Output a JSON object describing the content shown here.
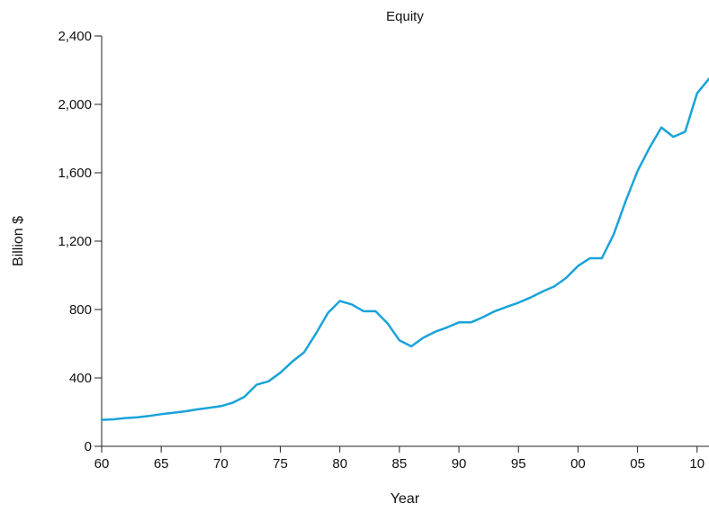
{
  "chart_data": {
    "type": "line",
    "title": "Equity",
    "xlabel": "Year",
    "ylabel": "Billion $",
    "xlim": [
      1960,
      2011
    ],
    "ylim": [
      0,
      2400
    ],
    "x_ticks": [
      {
        "value": 1960,
        "label": "60"
      },
      {
        "value": 1965,
        "label": "65"
      },
      {
        "value": 1970,
        "label": "70"
      },
      {
        "value": 1975,
        "label": "75"
      },
      {
        "value": 1980,
        "label": "80"
      },
      {
        "value": 1985,
        "label": "85"
      },
      {
        "value": 1990,
        "label": "90"
      },
      {
        "value": 1995,
        "label": "95"
      },
      {
        "value": 2000,
        "label": "00"
      },
      {
        "value": 2005,
        "label": "05"
      },
      {
        "value": 2010,
        "label": "10"
      }
    ],
    "y_ticks": [
      {
        "value": 0,
        "label": "0"
      },
      {
        "value": 400,
        "label": "400"
      },
      {
        "value": 800,
        "label": "800"
      },
      {
        "value": 1200,
        "label": "1,200"
      },
      {
        "value": 1600,
        "label": "1,600"
      },
      {
        "value": 2000,
        "label": "2,000"
      },
      {
        "value": 2400,
        "label": "2,400"
      }
    ],
    "grid": false,
    "legend": "none",
    "series": [
      {
        "color": "#1aa3d9",
        "x": [
          1960,
          1961,
          1962,
          1963,
          1964,
          1965,
          1966,
          1967,
          1968,
          1969,
          1970,
          1971,
          1972,
          1973,
          1974,
          1975,
          1976,
          1977,
          1978,
          1979,
          1980,
          1981,
          1982,
          1983,
          1984,
          1985,
          1986,
          1987,
          1988,
          1989,
          1990,
          1991,
          1992,
          1993,
          1994,
          1995,
          1996,
          1997,
          1998,
          1999,
          2000,
          2001,
          2002,
          2003,
          2004,
          2005,
          2006,
          2007,
          2008,
          2009,
          2010,
          2011
        ],
        "y": [
          155,
          158,
          165,
          170,
          178,
          188,
          196,
          205,
          216,
          225,
          235,
          255,
          290,
          360,
          380,
          430,
          495,
          550,
          660,
          780,
          850,
          830,
          790,
          790,
          720,
          620,
          585,
          635,
          670,
          695,
          725,
          725,
          755,
          790,
          815,
          840,
          870,
          905,
          935,
          985,
          1055,
          1100,
          1100,
          1240,
          1435,
          1610,
          1745,
          1865,
          1810,
          1840,
          2065,
          2150
        ]
      }
    ]
  }
}
